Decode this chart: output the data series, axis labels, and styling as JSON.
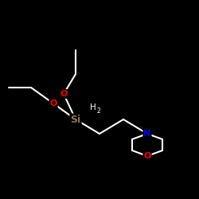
{
  "background_color": "#000000",
  "bond_color": "#ffffff",
  "atom_colors": {
    "O": "#ff0000",
    "N": "#0000ff",
    "Si": "#8b7355",
    "C": "#ffffff",
    "H": "#ffffff"
  },
  "si_color": "#a08050",
  "figsize": [
    2.5,
    2.5
  ],
  "dpi": 100
}
